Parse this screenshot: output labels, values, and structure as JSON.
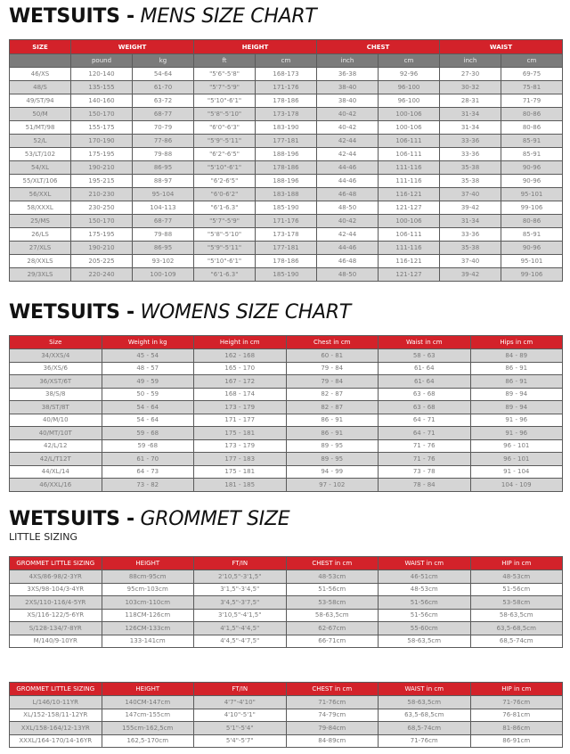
{
  "mens": {
    "title_bold": "WETSUITS -",
    "title_italic": "MENS SIZE CHART",
    "header": [
      "SIZE",
      "WEIGHT",
      "HEIGHT",
      "CHEST",
      "WAIST"
    ],
    "subheader": [
      "",
      "pound",
      "kg",
      "ft",
      "cm",
      "inch",
      "cm",
      "inch",
      "cm"
    ],
    "rows": [
      [
        "46/XS",
        "120-140",
        "54-64",
        "\"5'6\"-5'8\"",
        "168-173",
        "36-38",
        "92-96",
        "27-30",
        "69-75"
      ],
      [
        "48/S",
        "135-155",
        "61-70",
        "\"5'7\"-5'9\"",
        "171-176",
        "38-40",
        "96-100",
        "30-32",
        "75-81"
      ],
      [
        "49/ST/94",
        "140-160",
        "63-72",
        "\"5'10\"-6'1\"",
        "178-186",
        "38-40",
        "96-100",
        "28-31",
        "71-79"
      ],
      [
        "50/M",
        "150-170",
        "68-77",
        "\"5'8\"-5'10\"",
        "173-178",
        "40-42",
        "100-106",
        "31-34",
        "80-86"
      ],
      [
        "51/MT/98",
        "155-175",
        "70-79",
        "\"6'0\"-6'3\"",
        "183-190",
        "40-42",
        "100-106",
        "31-34",
        "80-86"
      ],
      [
        "52/L",
        "170-190",
        "77-86",
        "\"5'9\"-5'11\"",
        "177-181",
        "42-44",
        "106-111",
        "33-36",
        "85-91"
      ],
      [
        "53/LT/102",
        "175-195",
        "79-88",
        "\"6'2\"-6'5\"",
        "188-196",
        "42-44",
        "106-111",
        "33-36",
        "85-91"
      ],
      [
        "54/XL",
        "190-210",
        "86-95",
        "\"5'10\"-6'1\"",
        "178-186",
        "44-46",
        "111-116",
        "35-38",
        "90-96"
      ],
      [
        "55/XLT/106",
        "195-215",
        "88-97",
        "\"6'2-6'5\"",
        "188-196",
        "44-46",
        "111-116",
        "35-38",
        "90-96"
      ],
      [
        "56/XXL",
        "210-230",
        "95-104",
        "\"6'0-6'2\"",
        "183-188",
        "46-48",
        "116-121",
        "37-40",
        "95-101"
      ],
      [
        "58/XXXL",
        "230-250",
        "104-113",
        "\"6'1-6.3\"",
        "185-190",
        "48-50",
        "121-127",
        "39-42",
        "99-106"
      ],
      [
        "25/MS",
        "150-170",
        "68-77",
        "\"5'7\"-5'9\"",
        "171-176",
        "40-42",
        "100-106",
        "31-34",
        "80-86"
      ],
      [
        "26/LS",
        "175-195",
        "79-88",
        "\"5'8\"-5'10\"",
        "173-178",
        "42-44",
        "106-111",
        "33-36",
        "85-91"
      ],
      [
        "27/XLS",
        "190-210",
        "86-95",
        "\"5'9\"-5'11\"",
        "177-181",
        "44-46",
        "111-116",
        "35-38",
        "90-96"
      ],
      [
        "28/XXLS",
        "205-225",
        "93-102",
        "\"5'10\"-6'1\"",
        "178-186",
        "46-48",
        "116-121",
        "37-40",
        "95-101"
      ],
      [
        "29/3XLS",
        "220-240",
        "100-109",
        "\"6'1-6.3\"",
        "185-190",
        "48-50",
        "121-127",
        "39-42",
        "99-106"
      ]
    ]
  },
  "womens": {
    "title_bold": "WETSUITS -",
    "title_italic": "WOMENS SIZE CHART",
    "header": [
      "Size",
      "Weight in kg",
      "Height in cm",
      "Chest in cm",
      "Waist in cm",
      "Hips in cm"
    ],
    "rows": [
      [
        "34/XXS/4",
        "45 - 54",
        "162 - 168",
        "60 - 81",
        "58 - 63",
        "84 - 89"
      ],
      [
        "36/XS/6",
        "48 - 57",
        "165 - 170",
        "79 - 84",
        "61- 64",
        "86 - 91"
      ],
      [
        "36/XST/6T",
        "49 - 59",
        "167 - 172",
        "79 - 84",
        "61- 64",
        "86 - 91"
      ],
      [
        "38/S/8",
        "50 - 59",
        "168 - 174",
        "82 - 87",
        "63 - 68",
        "89 - 94"
      ],
      [
        "38/ST/8T",
        "54 - 64",
        "173 - 179",
        "82 - 87",
        "63 - 68",
        "89 - 94"
      ],
      [
        "40/M/10",
        "54 - 64",
        "171 - 177",
        "86 - 91",
        "64 - 71",
        "91 - 96"
      ],
      [
        "40/MT/10T",
        "59 - 68",
        "175 - 181",
        "86 - 91",
        "64 - 71",
        "91 - 96"
      ],
      [
        "42/L/12",
        "59 -68",
        "173 - 179",
        "89 - 95",
        "71 - 76",
        "96 - 101"
      ],
      [
        "42/L/T12T",
        "61 - 70",
        "177 - 183",
        "89 - 95",
        "71 - 76",
        "96 - 101"
      ],
      [
        "44/XL/14",
        "64 - 73",
        "175 - 181",
        "94 - 99",
        "73 - 78",
        "91 - 104"
      ],
      [
        "46/XXL/16",
        "73 - 82",
        "181 - 185",
        "97 - 102",
        "78 - 84",
        "104 - 109"
      ]
    ]
  },
  "grommet": {
    "title_bold": "WETSUITS -",
    "title_italic": "GROMMET SIZE",
    "subtitle": "LITTLE SIZING",
    "header": [
      "GROMMET LITTLE SIZING",
      "HEIGHT",
      "FT/IN",
      "CHEST in cm",
      "WAIST in cm",
      "HIP in cm"
    ],
    "rows": [
      [
        "4XS/86-98/2-3YR",
        "88cm-95cm",
        "2'10,5\"-3'1,5\"",
        "48-53cm",
        "46-51cm",
        "48-53cm"
      ],
      [
        "3XS/98-104/3-4YR",
        "95cm-103cm",
        "3'1,5\"-3'4,5\"",
        "51-56cm",
        "48-53cm",
        "51-56cm"
      ],
      [
        "2XS/110-116/4-5YR",
        "103cm-110cm",
        "3'4,5\"-3'7,5\"",
        "53-58cm",
        "51-56cm",
        "53-58cm"
      ],
      [
        "XS/116-122/5-6YR",
        "118CM-126cm",
        "3'10,5\"-4'1,5\"",
        "58-63,5cm",
        "51-56cm",
        "58-63,5cm"
      ],
      [
        "S/128-134/7-8YR",
        "126CM-133cm",
        "4'1,5\"-4'4,5\"",
        "62-67cm",
        "55-60cm",
        "63,5-68,5cm"
      ],
      [
        "M/140/9-10YR",
        "133-141cm",
        "4'4,5\"-4'7,5\"",
        "66-71cm",
        "58-63,5cm",
        "68,5-74cm"
      ]
    ]
  },
  "grommet2": {
    "header": [
      "GROMMET LITTLE SIZING",
      "HEIGHT",
      "FT/IN",
      "CHEST in cm",
      "WAIST in cm",
      "HIP in cm"
    ],
    "rows": [
      [
        "L/146/10-11YR",
        "140CM-147cm",
        "4'7\"-4'10\"",
        "71-76cm",
        "58-63,5cm",
        "71-76cm"
      ],
      [
        "XL/152-158/11-12YR",
        "147cm-155cm",
        "4'10\"-5'1\"",
        "74-79cm",
        "63,5-68,5cm",
        "76-81cm"
      ],
      [
        "XXL/158-164/12-13YR",
        "155cm-162,5cm",
        "5'1\"-5'4\"",
        "79-84cm",
        "68,5-74cm",
        "81-86cm"
      ],
      [
        "XXXL/164-170/14-16YR",
        "162,5-170cm",
        "5'4\"-5'7\"",
        "84-89cm",
        "71-76cm",
        "86-91cm"
      ]
    ]
  },
  "colors": {
    "header_red": "#d3222a",
    "subheader_gray": "#7b7b7b",
    "stripe_gray": "#d5d5d5"
  }
}
